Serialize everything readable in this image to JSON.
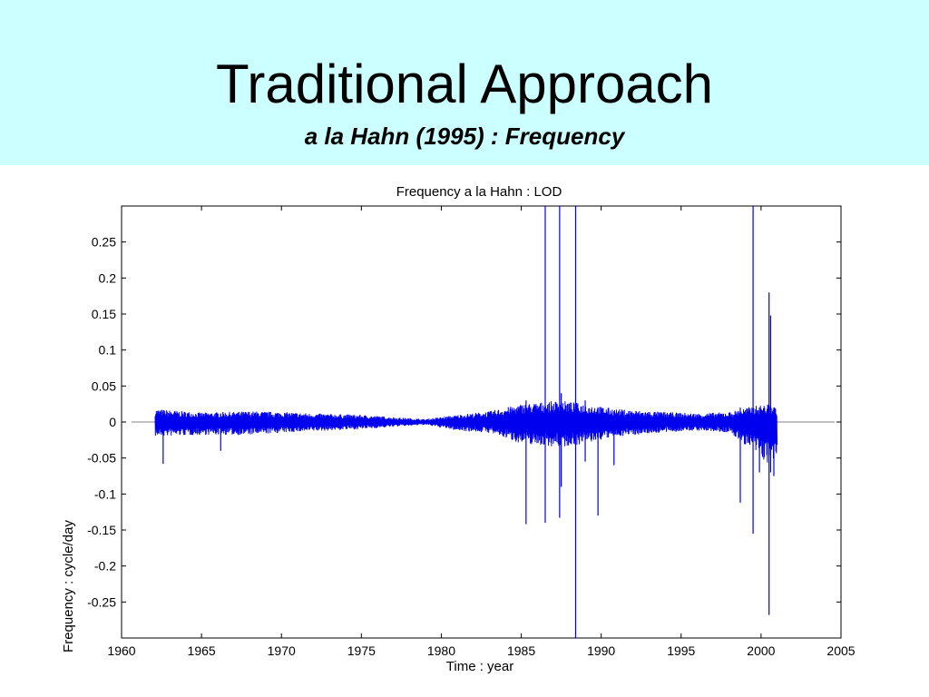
{
  "slide": {
    "title": "Traditional Approach",
    "subtitle": "a la Hahn  (1995)  : Frequency"
  },
  "colors": {
    "banner": "#ccffff",
    "series": "#0000ee"
  },
  "chart_data": {
    "type": "line",
    "title": "Frequency a la Hahn : LOD",
    "xlabel": "Time : year",
    "ylabel": "Frequency : cycle/day",
    "xlim": [
      1960,
      2005
    ],
    "ylim": [
      -0.3,
      0.3
    ],
    "xticks": [
      1960,
      1965,
      1970,
      1975,
      1980,
      1985,
      1990,
      1995,
      2000,
      2005
    ],
    "yticks": [
      0.25,
      0.2,
      0.15,
      0.1,
      0.05,
      0,
      -0.05,
      -0.1,
      -0.15,
      -0.2,
      -0.25
    ],
    "grid": false,
    "series": [
      {
        "data_range": [
          1962.1,
          2001.0
        ],
        "envelope": [
          {
            "x": 1962.2,
            "lo": -0.02,
            "hi": 0.018
          },
          {
            "x": 1965.0,
            "lo": -0.018,
            "hi": 0.013
          },
          {
            "x": 1968.0,
            "lo": -0.018,
            "hi": 0.015
          },
          {
            "x": 1970.0,
            "lo": -0.015,
            "hi": 0.014
          },
          {
            "x": 1972.0,
            "lo": -0.013,
            "hi": 0.012
          },
          {
            "x": 1975.0,
            "lo": -0.01,
            "hi": 0.01
          },
          {
            "x": 1977.5,
            "lo": -0.006,
            "hi": 0.006
          },
          {
            "x": 1979.0,
            "lo": -0.004,
            "hi": 0.004
          },
          {
            "x": 1981.0,
            "lo": -0.012,
            "hi": 0.01
          },
          {
            "x": 1983.0,
            "lo": -0.015,
            "hi": 0.015
          },
          {
            "x": 1985.0,
            "lo": -0.03,
            "hi": 0.025
          },
          {
            "x": 1987.5,
            "lo": -0.035,
            "hi": 0.03
          },
          {
            "x": 1989.0,
            "lo": -0.03,
            "hi": 0.025
          },
          {
            "x": 1991.0,
            "lo": -0.02,
            "hi": 0.018
          },
          {
            "x": 1993.0,
            "lo": -0.016,
            "hi": 0.015
          },
          {
            "x": 1996.0,
            "lo": -0.012,
            "hi": 0.012
          },
          {
            "x": 1998.0,
            "lo": -0.015,
            "hi": 0.014
          },
          {
            "x": 1999.5,
            "lo": -0.04,
            "hi": 0.022
          },
          {
            "x": 2000.5,
            "lo": -0.06,
            "hi": 0.025
          },
          {
            "x": 2001.0,
            "lo": -0.05,
            "hi": 0.02
          }
        ],
        "spikes": [
          {
            "x": 1962.6,
            "lo": -0.058,
            "hi": 0.01
          },
          {
            "x": 1966.2,
            "lo": -0.04,
            "hi": 0.012
          },
          {
            "x": 1985.3,
            "lo": -0.142,
            "hi": 0.03
          },
          {
            "x": 1986.5,
            "lo": -0.14,
            "hi": 0.3
          },
          {
            "x": 1987.4,
            "lo": -0.133,
            "hi": 0.3
          },
          {
            "x": 1987.5,
            "lo": -0.09,
            "hi": 0.04
          },
          {
            "x": 1988.4,
            "lo": -0.3,
            "hi": 0.3
          },
          {
            "x": 1989.0,
            "lo": -0.055,
            "hi": 0.03
          },
          {
            "x": 1989.8,
            "lo": -0.13,
            "hi": 0.02
          },
          {
            "x": 1990.8,
            "lo": -0.06,
            "hi": 0.015
          },
          {
            "x": 1998.7,
            "lo": -0.112,
            "hi": 0.02
          },
          {
            "x": 1999.5,
            "lo": -0.155,
            "hi": 0.3
          },
          {
            "x": 1999.9,
            "lo": -0.07,
            "hi": 0.02
          },
          {
            "x": 2000.5,
            "lo": -0.268,
            "hi": 0.18
          },
          {
            "x": 2000.6,
            "lo": -0.07,
            "hi": 0.148
          },
          {
            "x": 2000.8,
            "lo": -0.075,
            "hi": 0.02
          }
        ]
      }
    ]
  }
}
